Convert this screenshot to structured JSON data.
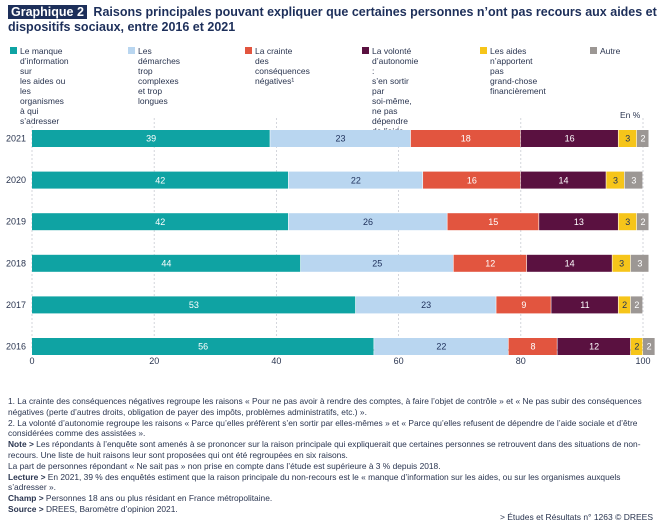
{
  "header": {
    "badge": "Graphique 2",
    "title": "Raisons principales pouvant expliquer que certaines personnes n’ont pas recours aux aides et dispositifs sociaux, entre 2016 et 2021"
  },
  "unit_label": "En %",
  "chart_data": {
    "type": "bar",
    "orientation": "horizontal",
    "stacked": true,
    "title": "Raisons principales pouvant expliquer que certaines personnes n’ont pas recours aux aides et dispositifs sociaux, entre 2016 et 2021",
    "categories": [
      "2021",
      "2020",
      "2019",
      "2018",
      "2017",
      "2016"
    ],
    "xlim": [
      0,
      100
    ],
    "xticks": [
      0,
      20,
      40,
      60,
      80,
      100
    ],
    "series": [
      {
        "name": "Le manque d’information sur les aides ou les organismes à qui s’adresser",
        "legend_text": "Le manque\nd’information sur\nles aides ou les\norganismes à qui\ns’adresser",
        "color": "#0fa3a3",
        "label_color": "#ffffff",
        "values": [
          39,
          42,
          42,
          44,
          53,
          56
        ]
      },
      {
        "name": "Les démarches trop complexes et trop longues",
        "legend_text": "Les démarches\ntrop complexes\net trop longues",
        "color": "#b9d6f0",
        "label_color": "#1d2f5a",
        "values": [
          23,
          22,
          26,
          25,
          23,
          22
        ]
      },
      {
        "name": "La crainte des conséquences négatives",
        "legend_text": "La crainte\ndes conséquences\nnégatives¹",
        "color": "#e2553f",
        "label_color": "#ffffff",
        "values": [
          18,
          16,
          15,
          12,
          9,
          8
        ]
      },
      {
        "name": "La volonté d’autonomie : s’en sortir par soi-même, ne pas dépendre de l’aide sociale",
        "legend_text": "La volonté\nd’autonomie :\ns’en sortir par\nsoi-même, ne pas\ndépendre de l’aide\nsociale²",
        "color": "#5a1140",
        "label_color": "#ffffff",
        "values": [
          16,
          14,
          13,
          14,
          11,
          12
        ]
      },
      {
        "name": "Les aides n’apportent pas grand-chose financièrement",
        "legend_text": "Les aides\nn’apportent pas\ngrand-chose\nfinancièrement",
        "color": "#f6c51a",
        "label_color": "#1d2f5a",
        "values": [
          3,
          3,
          3,
          3,
          2,
          2
        ]
      },
      {
        "name": "Autre",
        "legend_text": "Autre",
        "color": "#9c9794",
        "label_color": "#ffffff",
        "values": [
          2,
          3,
          2,
          3,
          2,
          2
        ]
      }
    ]
  },
  "notes": {
    "n1": "1. La crainte des conséquences négatives regroupe les raisons « Pour ne pas avoir à rendre des comptes, à faire l’objet de contrôle » et « Ne pas subir des conséquences négatives (perte d’autres droits, obligation de payer des impôts, problèmes administratifs, etc.) ».",
    "n2": "2. La volonté d’autonomie regroupe les raisons « Parce qu’elles préfèrent s’en sortir par elles-mêmes » et « Parce qu’elles refusent de dépendre de l’aide sociale et d’être considérées comme des assistées ».",
    "note_label": "Note >",
    "note_1": " Les répondants à l’enquête sont amenés à se prononcer sur la raison principale qui expliquerait que certaines personnes se retrouvent dans des situations de non-recours. Une liste de huit raisons leur sont proposées qui ont été regroupées en six raisons.",
    "note_2": "La part de personnes répondant « Ne sait pas » non prise en compte dans l’étude est supérieure à 3 % depuis 2018.",
    "lecture_label": "Lecture >",
    "lecture": " En 2021, 39 % des enquêtés estiment que la raison principale du non-recours est le « manque d’information sur les aides, ou sur les organismes auxquels s’adresser ».",
    "champ_label": "Champ >",
    "champ": " Personnes 18 ans ou plus résidant en France métropolitaine.",
    "source_label": "Source >",
    "source": " DREES, Baromètre d’opinion 2021."
  },
  "credit": "> Études et Résultats n° 1263 © DREES"
}
